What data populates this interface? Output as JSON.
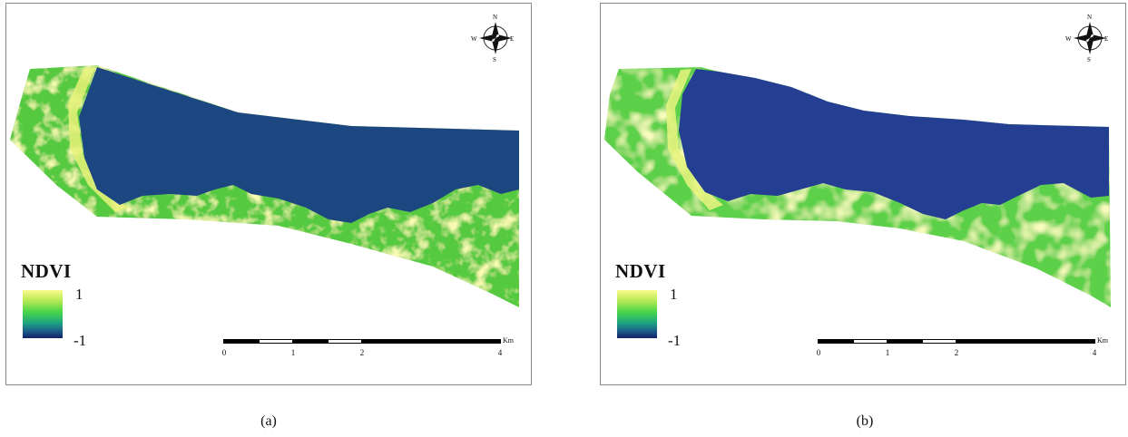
{
  "panels": [
    {
      "caption": "(a)",
      "legend": {
        "title": "NDVI",
        "max_label": "1",
        "min_label": "-1",
        "colors": [
          "#fafa8c",
          "#b6ea55",
          "#4ad64a",
          "#1fa57f",
          "#1c5e8a",
          "#11206a"
        ]
      },
      "scalebar": {
        "unit": "Km",
        "ticks": [
          "0",
          "1",
          "2",
          "4"
        ]
      },
      "north_arrow": {
        "n": "N",
        "s": "S",
        "e": "E",
        "w": "W"
      },
      "texture": "fine"
    },
    {
      "caption": "(b)",
      "legend": {
        "title": "NDVI",
        "max_label": "1",
        "min_label": "-1",
        "colors": [
          "#fafa8c",
          "#b6ea55",
          "#4ad64a",
          "#1fa57f",
          "#1c5e8a",
          "#11206a"
        ]
      },
      "scalebar": {
        "unit": "Km",
        "ticks": [
          "0",
          "1",
          "2",
          "4"
        ]
      },
      "north_arrow": {
        "n": "N",
        "s": "S",
        "e": "E",
        "w": "W"
      },
      "texture": "coarse"
    }
  ],
  "colors": {
    "water": "#1d3f7e",
    "vegetation": "#5fcf3f",
    "bright_veg": "#f3f58a",
    "frame": "#8a8a8a"
  }
}
